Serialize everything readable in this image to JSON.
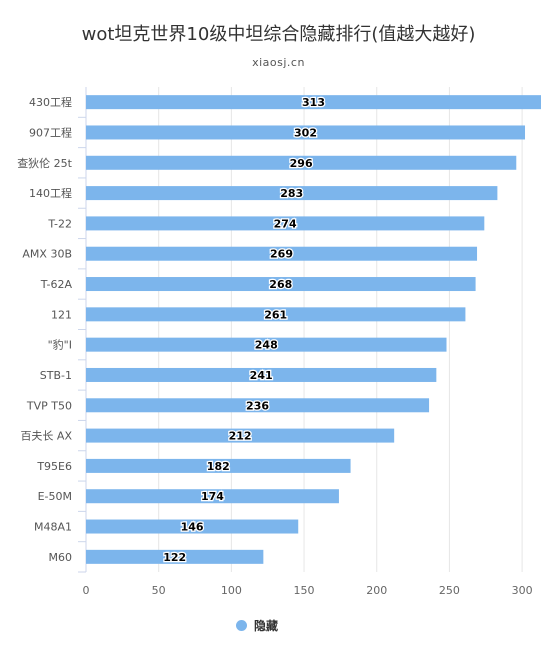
{
  "chart_data": {
    "type": "bar",
    "orientation": "horizontal",
    "title": "wot坦克世界10级中坦综合隐藏排行(值越大越好)",
    "subtitle": "xiaosj.cn",
    "categories": [
      "430工程",
      "907工程",
      "查狄伦 25t",
      "140工程",
      "T-22",
      "AMX 30B",
      "T-62A",
      "121",
      "\"豹\"I",
      "STB-1",
      "TVP T50",
      "百夫长 AX",
      "T95E6",
      "E-50M",
      "M48A1",
      "M60"
    ],
    "series": [
      {
        "name": "隐藏",
        "values": [
          313,
          302,
          296,
          283,
          274,
          269,
          268,
          261,
          248,
          241,
          236,
          212,
          182,
          174,
          146,
          122
        ],
        "color": "#7cb5ec"
      }
    ],
    "xlim": [
      0,
      313
    ],
    "xticks": [
      0,
      50,
      100,
      150,
      200,
      250,
      300
    ],
    "grid": true,
    "data_labels": true,
    "legend_position": "bottom-center"
  }
}
